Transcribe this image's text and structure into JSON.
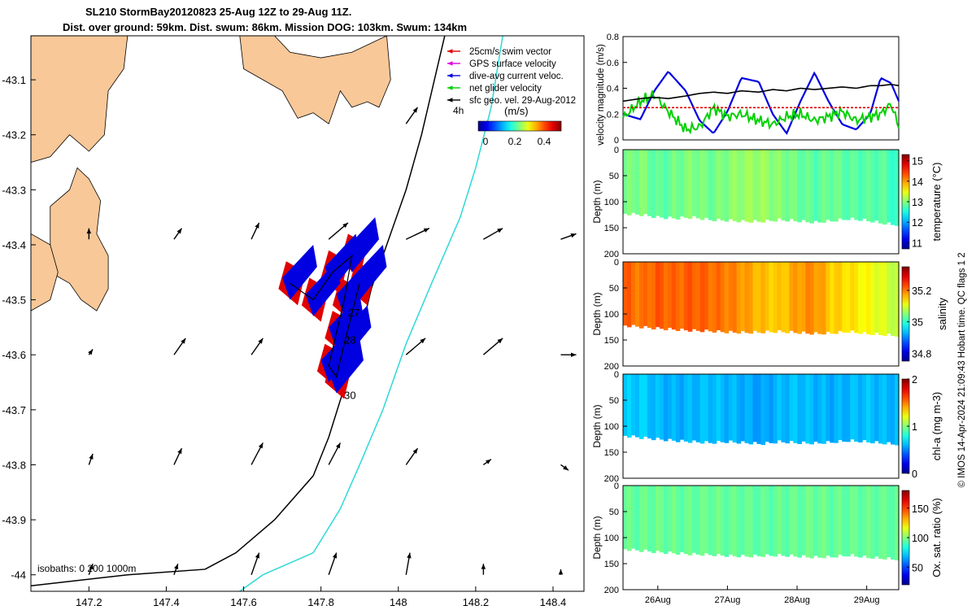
{
  "title": {
    "line1": "SL210 StormBay20120823 25-Aug 12Z to 29-Aug 11Z.",
    "line2": "Dist. over ground: 59km. Dist. swum: 86km. Mission DOG: 103km. Swum: 134km"
  },
  "map": {
    "xlim": [
      147.05,
      148.48
    ],
    "ylim": [
      -44.03,
      -43.02
    ],
    "xticks": [
      "147.2",
      "147.4",
      "147.6",
      "147.8",
      "148",
      "148.2",
      "148.4"
    ],
    "xtick_values": [
      147.2,
      147.4,
      147.6,
      147.8,
      148.0,
      148.2,
      148.4
    ],
    "yticks": [
      "-43.1",
      "-43.2",
      "-43.3",
      "-43.4",
      "-43.5",
      "-43.6",
      "-43.7",
      "-43.8",
      "-43.9",
      "-44"
    ],
    "ytick_values": [
      -43.1,
      -43.2,
      -43.3,
      -43.4,
      -43.5,
      -43.6,
      -43.7,
      -43.8,
      -43.9,
      -44.0
    ],
    "legend": [
      "25cm/s swim vector",
      "GPS surface velocity",
      "dive-avg current veloc.",
      "net glider velocity",
      "sfc geo. vel. 29-Aug-2012"
    ],
    "legend_colors": [
      "#e00000",
      "#e000e0",
      "#0000e0",
      "#00d000",
      "#000000"
    ],
    "colorbar": {
      "label": "(m/s)",
      "ticks": [
        "0",
        "0.2",
        "0.4"
      ],
      "scale_label": "4h"
    },
    "isobath_label": "isobaths: 0   200  1000m",
    "day_labels": [
      "27",
      "28",
      "30"
    ],
    "land_color": "#f8c898",
    "isobath_200_color": "#000000",
    "isobath_1000_color": "#30d8d8",
    "isobath_200": [
      [
        148.12,
        -43.02
      ],
      [
        148.06,
        -43.2
      ],
      [
        148.02,
        -43.3
      ],
      [
        147.98,
        -43.38
      ],
      [
        147.93,
        -43.48
      ],
      [
        147.9,
        -43.57
      ],
      [
        147.86,
        -43.66
      ],
      [
        147.82,
        -43.75
      ],
      [
        147.78,
        -43.82
      ],
      [
        147.68,
        -43.9
      ],
      [
        147.58,
        -43.96
      ],
      [
        147.5,
        -43.99
      ],
      [
        147.3,
        -44.0
      ],
      [
        147.05,
        -44.02
      ]
    ],
    "isobath_1000": [
      [
        148.27,
        -43.02
      ],
      [
        148.24,
        -43.15
      ],
      [
        148.2,
        -43.26
      ],
      [
        148.16,
        -43.35
      ],
      [
        148.08,
        -43.48
      ],
      [
        148.02,
        -43.58
      ],
      [
        147.96,
        -43.7
      ],
      [
        147.9,
        -43.8
      ],
      [
        147.85,
        -43.88
      ],
      [
        147.78,
        -43.96
      ],
      [
        147.65,
        -44.0
      ],
      [
        147.55,
        -44.05
      ]
    ],
    "land": [
      [
        [
          147.05,
          -43.02
        ],
        [
          147.3,
          -43.02
        ],
        [
          147.29,
          -43.08
        ],
        [
          147.25,
          -43.12
        ],
        [
          147.24,
          -43.2
        ],
        [
          147.2,
          -43.23
        ],
        [
          147.15,
          -43.2
        ],
        [
          147.1,
          -43.24
        ],
        [
          147.05,
          -43.25
        ]
      ],
      [
        [
          147.1,
          -43.33
        ],
        [
          147.15,
          -43.3
        ],
        [
          147.17,
          -43.26
        ],
        [
          147.2,
          -43.28
        ],
        [
          147.23,
          -43.32
        ],
        [
          147.22,
          -43.38
        ],
        [
          147.25,
          -43.42
        ],
        [
          147.25,
          -43.48
        ],
        [
          147.22,
          -43.52
        ],
        [
          147.18,
          -43.5
        ],
        [
          147.15,
          -43.47
        ],
        [
          147.1,
          -43.45
        ]
      ],
      [
        [
          147.05,
          -43.38
        ],
        [
          147.1,
          -43.4
        ],
        [
          147.12,
          -43.45
        ],
        [
          147.1,
          -43.5
        ],
        [
          147.05,
          -43.52
        ]
      ],
      [
        [
          147.59,
          -43.02
        ],
        [
          147.68,
          -43.02
        ],
        [
          147.72,
          -43.05
        ],
        [
          147.8,
          -43.06
        ],
        [
          147.88,
          -43.05
        ],
        [
          147.97,
          -43.02
        ],
        [
          147.98,
          -43.1
        ],
        [
          147.95,
          -43.15
        ],
        [
          147.92,
          -43.14
        ],
        [
          147.88,
          -43.15
        ],
        [
          147.85,
          -43.12
        ],
        [
          147.82,
          -43.18
        ],
        [
          147.78,
          -43.16
        ],
        [
          147.74,
          -43.17
        ],
        [
          147.7,
          -43.12
        ],
        [
          147.65,
          -43.1
        ],
        [
          147.6,
          -43.08
        ]
      ]
    ],
    "grid_arrows": [
      [
        147.2,
        -43.39,
        0.0,
        0.02
      ],
      [
        147.42,
        -43.39,
        0.02,
        0.02
      ],
      [
        147.62,
        -43.39,
        0.02,
        0.03
      ],
      [
        147.82,
        -43.39,
        0.05,
        0.03
      ],
      [
        148.02,
        -43.39,
        0.06,
        0.02
      ],
      [
        148.22,
        -43.39,
        0.05,
        0.02
      ],
      [
        148.42,
        -43.39,
        0.04,
        0.01
      ],
      [
        147.2,
        -43.6,
        0.01,
        0.01
      ],
      [
        147.42,
        -43.6,
        0.03,
        0.03
      ],
      [
        147.62,
        -43.6,
        0.03,
        0.03
      ],
      [
        147.82,
        -43.6,
        0.0,
        0.0
      ],
      [
        148.02,
        -43.6,
        0.05,
        0.03
      ],
      [
        148.22,
        -43.6,
        0.05,
        0.03
      ],
      [
        148.42,
        -43.6,
        0.04,
        0.0
      ],
      [
        147.2,
        -43.8,
        0.01,
        0.02
      ],
      [
        147.42,
        -43.8,
        0.02,
        0.03
      ],
      [
        147.62,
        -43.8,
        0.03,
        0.04
      ],
      [
        147.82,
        -43.8,
        0.03,
        0.04
      ],
      [
        148.02,
        -43.8,
        0.03,
        0.03
      ],
      [
        148.22,
        -43.8,
        0.02,
        0.01
      ],
      [
        148.42,
        -43.8,
        0.02,
        -0.01
      ],
      [
        147.2,
        -44.0,
        0.01,
        0.02
      ],
      [
        147.42,
        -44.0,
        0.01,
        0.02
      ],
      [
        147.62,
        -44.0,
        0.02,
        0.04
      ],
      [
        147.82,
        -44.0,
        0.02,
        0.04
      ],
      [
        148.02,
        -44.0,
        0.01,
        0.04
      ],
      [
        148.22,
        -44.0,
        0.0,
        0.02
      ],
      [
        148.42,
        -44.0,
        0.0,
        0.01
      ],
      [
        148.02,
        -43.18,
        0.03,
        0.03
      ]
    ]
  },
  "chart_data": [
    {
      "type": "line",
      "ylabel": "velocity magnitude (m/s)",
      "ylim": [
        0,
        0.8
      ],
      "yticks": [
        "0",
        "0.2",
        "0.4",
        "0.6",
        "0.8"
      ],
      "ytick_values": [
        0,
        0.2,
        0.4,
        0.6,
        0.8
      ],
      "xlim": [
        25.5,
        29.46
      ],
      "x": [
        25.5,
        25.75,
        25.95,
        26.15,
        26.4,
        26.6,
        26.8,
        27.0,
        27.2,
        27.45,
        27.65,
        27.85,
        28.05,
        28.25,
        28.45,
        28.65,
        28.85,
        29.05,
        29.2,
        29.35,
        29.46
      ],
      "series": [
        {
          "name": "dive-avg current veloc.",
          "color": "#0000e0",
          "values": [
            0.2,
            0.16,
            0.38,
            0.53,
            0.38,
            0.15,
            0.05,
            0.22,
            0.48,
            0.45,
            0.2,
            0.05,
            0.3,
            0.52,
            0.3,
            0.12,
            0.08,
            0.2,
            0.48,
            0.44,
            0.3
          ]
        },
        {
          "name": "net glider velocity",
          "color": "#00d000",
          "values": [
            0.17,
            0.3,
            0.35,
            0.22,
            0.08,
            0.1,
            0.25,
            0.18,
            0.2,
            0.15,
            0.12,
            0.18,
            0.2,
            0.15,
            0.18,
            0.22,
            0.15,
            0.18,
            0.2,
            0.28,
            0.1
          ]
        },
        {
          "name": "25cm/s swim vector",
          "color": "#e00000",
          "values": [
            0.25,
            0.25,
            0.25,
            0.25,
            0.25,
            0.25,
            0.25,
            0.25,
            0.25,
            0.25,
            0.25,
            0.25,
            0.25,
            0.25,
            0.25,
            0.25,
            0.25,
            0.25,
            0.25,
            0.25,
            0.25
          ]
        },
        {
          "name": "sfc geo. vel.",
          "color": "#000000",
          "values": [
            0.3,
            0.32,
            0.33,
            0.32,
            0.34,
            0.36,
            0.37,
            0.36,
            0.38,
            0.37,
            0.39,
            0.38,
            0.4,
            0.39,
            0.4,
            0.41,
            0.4,
            0.42,
            0.42,
            0.43,
            0.42
          ]
        }
      ]
    },
    {
      "type": "heatmap",
      "variable": "temperature",
      "ylabel": "Depth (m)",
      "ylim": [
        0,
        200
      ],
      "yticks": [
        "0",
        "50",
        "100",
        "150",
        "200"
      ],
      "ytick_values": [
        0,
        50,
        100,
        150,
        200
      ],
      "colorbar_label": "temperature (°C)",
      "colorbar_ticks": [
        "11",
        "12",
        "13",
        "14",
        "15"
      ],
      "colorbar_values": [
        11,
        12,
        13,
        14,
        15
      ],
      "crange": [
        10.7,
        15.3
      ],
      "xlim": [
        25.5,
        29.46
      ],
      "x": [
        25.5,
        25.75,
        26.0,
        26.25,
        26.5,
        26.75,
        27.0,
        27.25,
        27.5,
        27.75,
        28.0,
        28.25,
        28.5,
        28.75,
        29.0,
        29.25,
        29.46
      ],
      "bottom_depth": [
        123,
        125,
        130,
        132,
        130,
        135,
        136,
        138,
        138,
        135,
        137,
        140,
        137,
        133,
        136,
        142,
        145
      ],
      "values": [
        12.9,
        13.0,
        12.8,
        12.9,
        13.0,
        12.9,
        13.0,
        13.1,
        13.1,
        13.0,
        12.9,
        12.8,
        12.9,
        12.8,
        12.8,
        12.8,
        12.6
      ]
    },
    {
      "type": "heatmap",
      "variable": "salinity",
      "ylabel": "Depth (m)",
      "ylim": [
        0,
        200
      ],
      "yticks": [
        "0",
        "50",
        "100",
        "150",
        "200"
      ],
      "ytick_values": [
        0,
        50,
        100,
        150,
        200
      ],
      "colorbar_label": "salinity",
      "colorbar_ticks": [
        "34.8",
        "35",
        "35.2"
      ],
      "colorbar_values": [
        34.8,
        35.0,
        35.2
      ],
      "crange": [
        34.75,
        35.35
      ],
      "xlim": [
        25.5,
        29.46
      ],
      "x": [
        25.5,
        25.75,
        26.0,
        26.25,
        26.5,
        26.75,
        27.0,
        27.25,
        27.5,
        27.75,
        28.0,
        28.25,
        28.5,
        28.75,
        29.0,
        29.25,
        29.46
      ],
      "bottom_depth": [
        122,
        125,
        128,
        130,
        132,
        133,
        135,
        136,
        135,
        134,
        136,
        138,
        137,
        134,
        138,
        140,
        142
      ],
      "values": [
        35.22,
        35.2,
        35.22,
        35.21,
        35.22,
        35.21,
        35.2,
        35.18,
        35.16,
        35.15,
        35.18,
        35.19,
        35.15,
        35.14,
        35.12,
        35.1,
        35.08
      ]
    },
    {
      "type": "heatmap",
      "variable": "chl-a",
      "ylabel": "Depth (m)",
      "ylim": [
        0,
        200
      ],
      "yticks": [
        "0",
        "50",
        "100",
        "150",
        "200"
      ],
      "ytick_values": [
        0,
        50,
        100,
        150,
        200
      ],
      "colorbar_label": "chl-a (mg m-3)",
      "colorbar_ticks": [
        "0",
        "1",
        "2"
      ],
      "colorbar_values": [
        0,
        1,
        2
      ],
      "crange": [
        0,
        2
      ],
      "xlim": [
        25.5,
        29.46
      ],
      "x": [
        25.5,
        25.75,
        26.0,
        26.25,
        26.5,
        26.75,
        27.0,
        27.25,
        27.5,
        27.75,
        28.0,
        28.25,
        28.5,
        28.75,
        29.0,
        29.25,
        29.46
      ],
      "bottom_depth": [
        118,
        122,
        125,
        128,
        130,
        132,
        130,
        132,
        134,
        130,
        132,
        133,
        131,
        128,
        130,
        133,
        135
      ],
      "values": [
        0.62,
        0.65,
        0.6,
        0.58,
        0.6,
        0.62,
        0.6,
        0.58,
        0.55,
        0.6,
        0.62,
        0.6,
        0.58,
        0.6,
        0.62,
        0.6,
        0.6
      ]
    },
    {
      "type": "heatmap",
      "variable": "oxygen saturation",
      "ylabel": "Depth (m)",
      "ylim": [
        0,
        200
      ],
      "yticks": [
        "0",
        "50",
        "100",
        "150",
        "200"
      ],
      "ytick_values": [
        0,
        50,
        100,
        150,
        200
      ],
      "colorbar_label": "Ox. sat. ratio (%)",
      "colorbar_ticks": [
        "50",
        "100",
        "150"
      ],
      "colorbar_values": [
        50,
        100,
        150
      ],
      "crange": [
        20,
        180
      ],
      "xlim": [
        25.5,
        29.46
      ],
      "x": [
        25.5,
        25.75,
        26.0,
        26.25,
        26.5,
        26.75,
        27.0,
        27.25,
        27.5,
        27.75,
        28.0,
        28.25,
        28.5,
        28.75,
        29.0,
        29.25,
        29.46
      ],
      "bottom_depth": [
        122,
        125,
        128,
        130,
        132,
        133,
        135,
        136,
        135,
        134,
        136,
        138,
        137,
        134,
        138,
        140,
        142
      ],
      "values": [
        95,
        95,
        96,
        95,
        95,
        96,
        95,
        95,
        94,
        95,
        95,
        96,
        95,
        95,
        95,
        95,
        95
      ]
    }
  ],
  "time_axis": {
    "ticks": [
      "26Aug",
      "27Aug",
      "28Aug",
      "29Aug"
    ],
    "tick_values": [
      26.0,
      27.0,
      28.0,
      29.0
    ]
  },
  "credit": "© IMOS 14-Apr-2024 21:09:43 Hobart time. QC flags 1  2"
}
